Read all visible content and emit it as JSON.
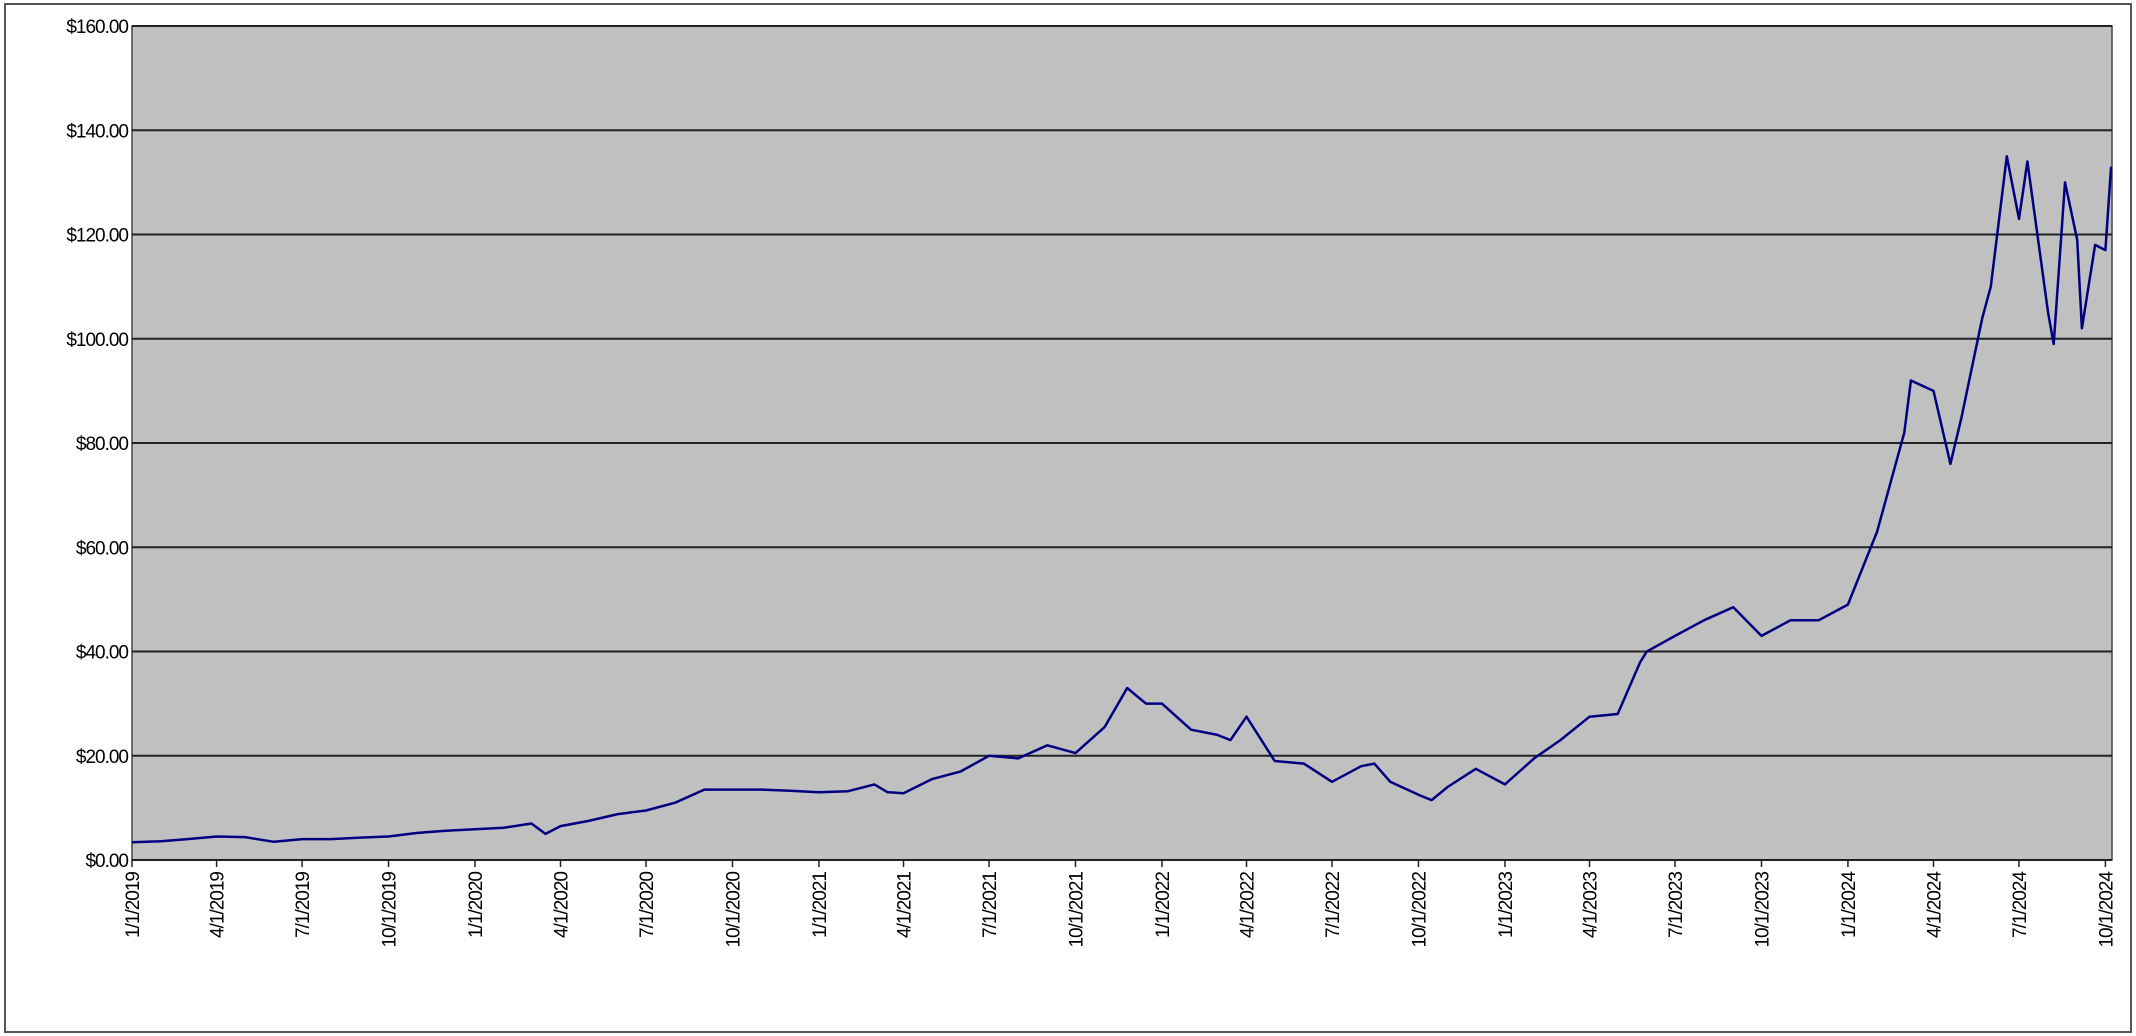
{
  "chart_data": {
    "type": "line",
    "color": "#000080",
    "background": "#c0c0c0",
    "grid": true,
    "x": [
      "1/1/2019",
      "2/1/2019",
      "3/1/2019",
      "4/1/2019",
      "5/1/2019",
      "6/1/2019",
      "7/1/2019",
      "8/1/2019",
      "9/1/2019",
      "10/1/2019",
      "11/1/2019",
      "12/1/2019",
      "1/1/2020",
      "2/1/2020",
      "3/1/2020",
      "3/16/2020",
      "4/1/2020",
      "5/1/2020",
      "6/1/2020",
      "7/1/2020",
      "8/1/2020",
      "9/1/2020",
      "10/1/2020",
      "11/1/2020",
      "12/1/2020",
      "1/1/2021",
      "2/1/2021",
      "3/1/2021",
      "3/15/2021",
      "4/1/2021",
      "5/1/2021",
      "6/1/2021",
      "7/1/2021",
      "8/1/2021",
      "9/1/2021",
      "10/1/2021",
      "11/1/2021",
      "11/25/2021",
      "12/15/2021",
      "1/1/2022",
      "2/1/2022",
      "3/1/2022",
      "3/15/2022",
      "4/1/2022",
      "5/1/2022",
      "6/1/2022",
      "7/1/2022",
      "8/1/2022",
      "8/15/2022",
      "9/1/2022",
      "10/1/2022",
      "10/15/2022",
      "11/1/2022",
      "12/1/2022",
      "1/1/2023",
      "2/1/2023",
      "3/1/2023",
      "4/1/2023",
      "5/1/2023",
      "5/25/2023",
      "6/1/2023",
      "7/1/2023",
      "8/1/2023",
      "9/1/2023",
      "10/1/2023",
      "11/1/2023",
      "12/1/2023",
      "1/1/2024",
      "2/1/2024",
      "3/1/2024",
      "3/8/2024",
      "4/1/2024",
      "4/19/2024",
      "5/1/2024",
      "5/23/2024",
      "6/1/2024",
      "6/18/2024",
      "7/1/2024",
      "7/10/2024",
      "8/1/2024",
      "8/7/2024",
      "8/19/2024",
      "9/1/2024",
      "9/6/2024",
      "9/20/2024",
      "10/1/2024",
      "10/7/2024"
    ],
    "values": [
      3.4,
      3.6,
      4.0,
      4.5,
      4.4,
      3.5,
      4.0,
      4.0,
      4.3,
      4.5,
      5.2,
      5.6,
      5.9,
      6.2,
      7.0,
      5.0,
      6.5,
      7.5,
      8.8,
      9.5,
      11.0,
      13.5,
      13.5,
      13.5,
      13.3,
      13.0,
      13.2,
      14.5,
      13.0,
      12.8,
      15.5,
      17.0,
      20.0,
      19.5,
      22.0,
      20.5,
      25.5,
      33.0,
      30.0,
      30.0,
      25.0,
      24.0,
      23.0,
      27.5,
      19.0,
      18.5,
      15.0,
      18.0,
      18.5,
      15.0,
      12.5,
      11.5,
      14.0,
      17.5,
      14.5,
      19.5,
      23.0,
      27.5,
      28.0,
      38.0,
      40.0,
      43.0,
      46.0,
      48.5,
      43.0,
      46.0,
      46.0,
      49.0,
      63.0,
      82.0,
      92.0,
      90.0,
      76.0,
      85.0,
      104.0,
      110.0,
      135.0,
      123.0,
      134.0,
      105.0,
      99.0,
      130.0,
      119.0,
      102.0,
      118.0,
      117.0,
      133.0
    ],
    "xlim": [
      "1/1/2019",
      "10/8/2024"
    ],
    "xticks": [
      "1/1/2019",
      "4/1/2019",
      "7/1/2019",
      "10/1/2019",
      "1/1/2020",
      "4/1/2020",
      "7/1/2020",
      "10/1/2020",
      "1/1/2021",
      "4/1/2021",
      "7/1/2021",
      "10/1/2021",
      "1/1/2022",
      "4/1/2022",
      "7/1/2022",
      "10/1/2022",
      "1/1/2023",
      "4/1/2023",
      "7/1/2023",
      "10/1/2023",
      "1/1/2024",
      "4/1/2024",
      "7/1/2024",
      "10/1/2024"
    ],
    "ylim": [
      0,
      160
    ],
    "yticks": [
      {
        "value": 0,
        "label": "$0.00"
      },
      {
        "value": 20,
        "label": "$20.00"
      },
      {
        "value": 40,
        "label": "$40.00"
      },
      {
        "value": 60,
        "label": "$60.00"
      },
      {
        "value": 80,
        "label": "$80.00"
      },
      {
        "value": 100,
        "label": "$100.00"
      },
      {
        "value": 120,
        "label": "$120.00"
      },
      {
        "value": 140,
        "label": "$140.00"
      },
      {
        "value": 160,
        "label": "$160.00"
      }
    ]
  }
}
